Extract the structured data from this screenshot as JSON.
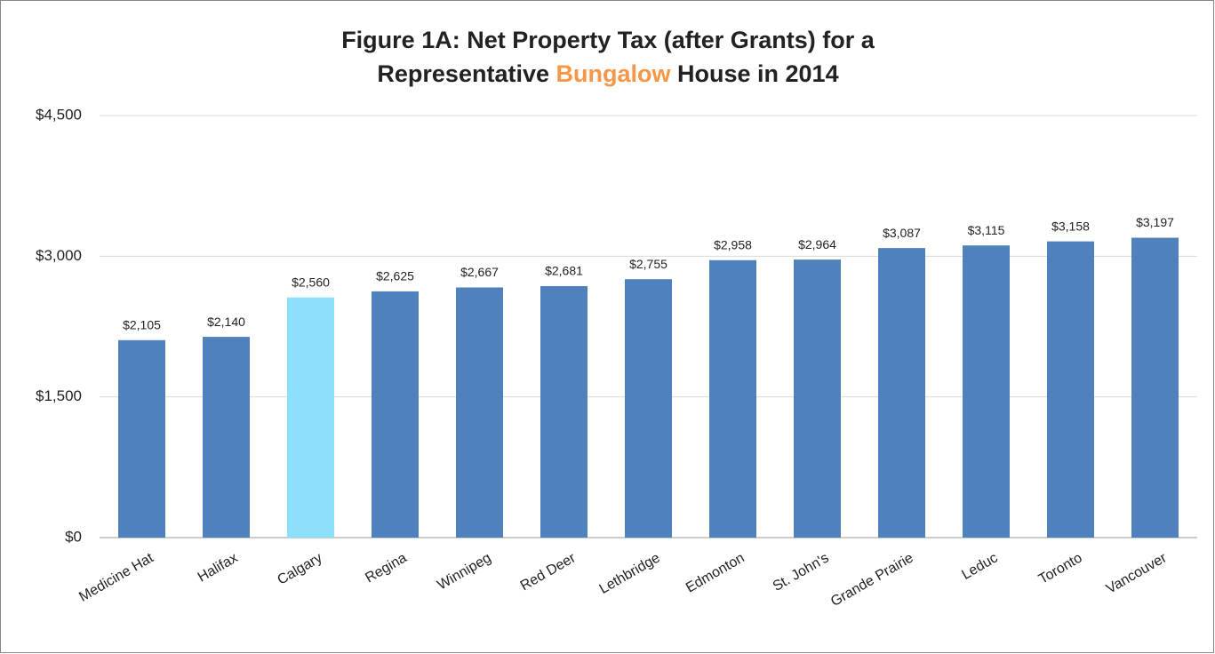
{
  "chart_data": {
    "type": "bar",
    "title": [
      [
        {
          "text": "Figure 1A: Net Property Tax (after Grants) for a"
        }
      ],
      [
        {
          "text": "Representative "
        },
        {
          "text": "Bungalow",
          "color": "#f79646"
        },
        {
          "text": " House in 2014"
        }
      ]
    ],
    "categories": [
      "Medicine Hat",
      "Halifax",
      "Calgary",
      "Regina",
      "Winnipeg",
      "Red Deer",
      "Lethbridge",
      "Edmonton",
      "St. John's",
      "Grande Prairie",
      "Leduc",
      "Toronto",
      "Vancouver"
    ],
    "values": [
      2105,
      2140,
      2560,
      2625,
      2667,
      2681,
      2755,
      2958,
      2964,
      3087,
      3115,
      3158,
      3197
    ],
    "value_labels": [
      "$2,105",
      "$2,140",
      "$2,560",
      "$2,625",
      "$2,667",
      "$2,681",
      "$2,755",
      "$2,958",
      "$2,964",
      "$3,087",
      "$3,115",
      "$3,158",
      "$3,197"
    ],
    "colors": [
      "#4f81bd",
      "#4f81bd",
      "#8ee0fa",
      "#4f81bd",
      "#4f81bd",
      "#4f81bd",
      "#4f81bd",
      "#4f81bd",
      "#4f81bd",
      "#4f81bd",
      "#4f81bd",
      "#4f81bd",
      "#4f81bd"
    ],
    "ylim": [
      0,
      4500
    ],
    "yticks": [
      {
        "value": 0,
        "label": "$0"
      },
      {
        "value": 1500,
        "label": "$1,500"
      },
      {
        "value": 3000,
        "label": "$3,000"
      },
      {
        "value": 4500,
        "label": "$4,500"
      }
    ],
    "grid": true
  }
}
